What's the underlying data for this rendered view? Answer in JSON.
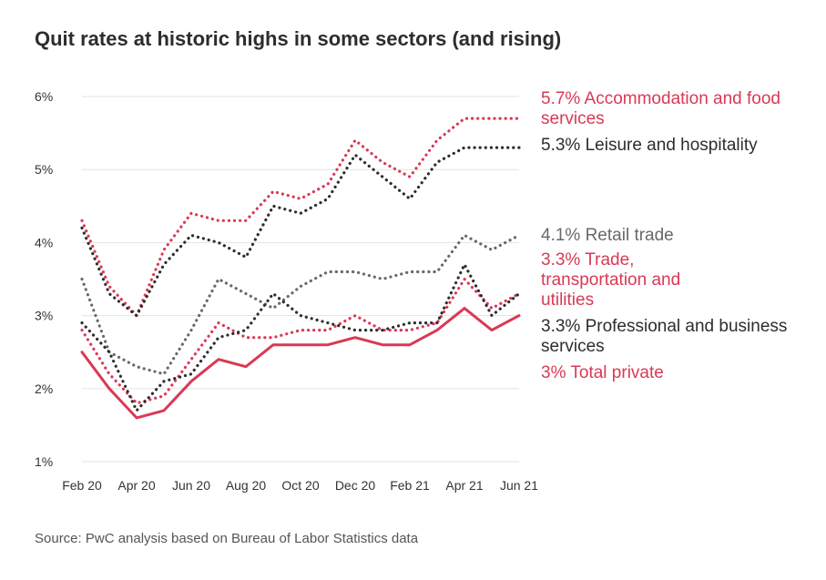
{
  "chart_data": {
    "type": "line",
    "title": "Quit rates at historic highs in some sectors (and rising)",
    "source": "Source: PwC analysis based on Bureau of Labor Statistics data",
    "x": [
      "Feb 20",
      "Mar 20",
      "Apr 20",
      "May 20",
      "Jun 20",
      "Jul 20",
      "Aug 20",
      "Sep 20",
      "Oct 20",
      "Nov 20",
      "Dec 20",
      "Jan 21",
      "Feb 21",
      "Mar 21",
      "Apr 21",
      "May 21",
      "Jun 21"
    ],
    "x_tick_labels": [
      "Feb 20",
      "Apr 20",
      "Jun 20",
      "Aug 20",
      "Oct 20",
      "Dec 20",
      "Feb 21",
      "Apr 21",
      "Jun 21"
    ],
    "y_tick_labels": [
      "6%",
      "5%",
      "4%",
      "3%",
      "2%",
      "1%"
    ],
    "ylim": [
      1,
      6
    ],
    "grid": true,
    "series": [
      {
        "name": "Accommodation and food services",
        "label": "5.7% Accommodation and food services",
        "color": "#d93954",
        "style": "dotted",
        "values": [
          4.3,
          3.4,
          3.0,
          3.9,
          4.4,
          4.3,
          4.3,
          4.7,
          4.6,
          4.8,
          5.4,
          5.1,
          4.9,
          5.4,
          5.7,
          5.7,
          5.7
        ]
      },
      {
        "name": "Leisure and hospitality",
        "label": "5.3% Leisure and hospitality",
        "color": "#2d2d2d",
        "style": "dotted",
        "values": [
          4.2,
          3.3,
          3.0,
          3.7,
          4.1,
          4.0,
          3.8,
          4.5,
          4.4,
          4.6,
          5.2,
          4.9,
          4.6,
          5.1,
          5.3,
          5.3,
          5.3
        ]
      },
      {
        "name": "Retail trade",
        "label": "4.1% Retail trade",
        "color": "#696969",
        "style": "dotted",
        "values": [
          3.5,
          2.5,
          2.3,
          2.2,
          2.8,
          3.5,
          3.3,
          3.1,
          3.4,
          3.6,
          3.6,
          3.5,
          3.6,
          3.6,
          4.1,
          3.9,
          4.1
        ]
      },
      {
        "name": "Trade, transportation and utilities",
        "label": "3.3% Trade, transportation and utilities",
        "color": "#d93954",
        "style": "dotted",
        "values": [
          2.8,
          2.2,
          1.8,
          1.9,
          2.4,
          2.9,
          2.7,
          2.7,
          2.8,
          2.8,
          3.0,
          2.8,
          2.8,
          2.9,
          3.5,
          3.1,
          3.3
        ]
      },
      {
        "name": "Professional and business services",
        "label": "3.3% Professional and business services",
        "color": "#2d2d2d",
        "style": "dotted",
        "values": [
          2.9,
          2.5,
          1.7,
          2.1,
          2.2,
          2.7,
          2.8,
          3.3,
          3.0,
          2.9,
          2.8,
          2.8,
          2.9,
          2.9,
          3.7,
          3.0,
          3.3
        ]
      },
      {
        "name": "Total private",
        "label": "3% Total private",
        "color": "#d93954",
        "style": "solid",
        "values": [
          2.5,
          2.0,
          1.6,
          1.7,
          2.1,
          2.4,
          2.3,
          2.6,
          2.6,
          2.6,
          2.7,
          2.6,
          2.6,
          2.8,
          3.1,
          2.8,
          3.0
        ]
      }
    ]
  }
}
